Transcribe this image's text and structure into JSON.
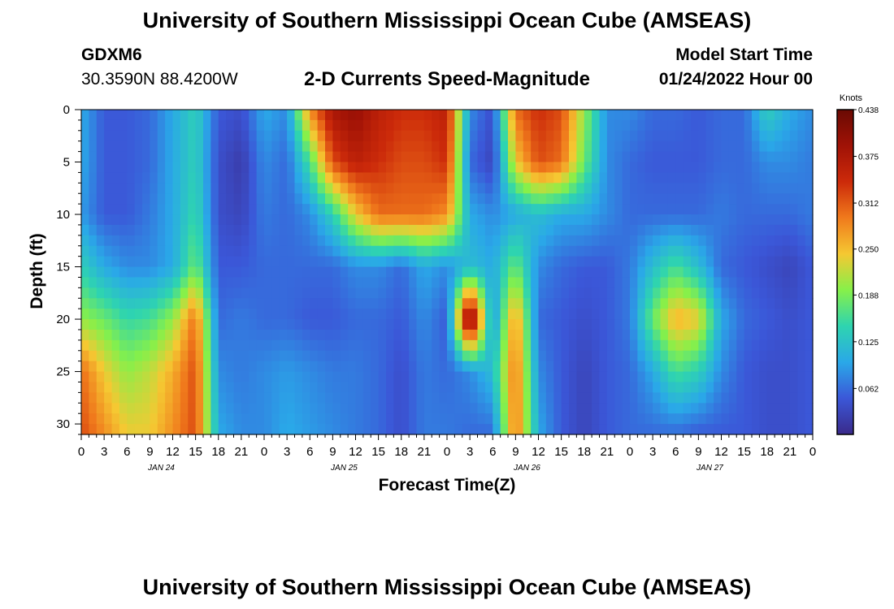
{
  "title": "University of Southern Mississippi Ocean Cube (AMSEAS)",
  "footer_title": "University of Southern Mississippi Ocean Cube (AMSEAS)",
  "station": "GDXM6",
  "coords": "30.3590N  88.4200W",
  "subtitle": "2-D Currents Speed-Magnitude",
  "model_start_label": "Model Start Time",
  "model_start_value": "01/24/2022 Hour 00",
  "chart_data": {
    "type": "heatmap",
    "title": "2-D Currents Speed-Magnitude",
    "xlabel": "Forecast Time(Z)",
    "ylabel": "Depth (ft)",
    "x_range_hours": [
      0,
      96
    ],
    "y_range_ft": [
      0,
      31
    ],
    "x_ticks": [
      "0",
      "3",
      "6",
      "9",
      "12",
      "15",
      "18",
      "21",
      "0",
      "3",
      "6",
      "9",
      "12",
      "15",
      "18",
      "21",
      "0",
      "3",
      "6",
      "9",
      "12",
      "15",
      "18",
      "21",
      "0",
      "3",
      "6",
      "9",
      "12",
      "15",
      "18",
      "21",
      "0"
    ],
    "y_ticks": [
      "0",
      "5",
      "10",
      "15",
      "20",
      "25",
      "30"
    ],
    "date_labels": [
      {
        "label": "JAN 24",
        "hour": 10.5
      },
      {
        "label": "JAN 25",
        "hour": 34.5
      },
      {
        "label": "JAN 26",
        "hour": 58.5
      },
      {
        "label": "JAN 27",
        "hour": 82.5
      }
    ],
    "colorbar": {
      "unit": "Knots",
      "min": 0,
      "max": 0.438,
      "ticks": [
        "0.438",
        "0.375",
        "0.312",
        "0.250",
        "0.188",
        "0.125",
        "0.062"
      ],
      "colors": [
        "#3a2a8a",
        "#3b57d8",
        "#2aa8e8",
        "#2ed4b0",
        "#86f04a",
        "#f5c832",
        "#f07a1c",
        "#cc2a0a",
        "#a01206",
        "#6a0a03"
      ]
    },
    "approx_speed_knots": {
      "depth_ft": [
        0,
        5,
        10,
        15,
        20,
        25,
        31
      ],
      "hours": [
        0,
        3,
        6,
        9,
        12,
        15,
        18,
        21,
        24,
        27,
        30,
        33,
        36,
        39,
        42,
        45,
        48,
        51,
        54,
        57,
        60,
        63,
        66,
        69,
        72,
        75,
        78,
        81,
        84,
        87,
        90,
        93,
        96
      ],
      "values": [
        [
          0.1,
          0.05,
          0.05,
          0.06,
          0.1,
          0.14,
          0.05,
          0.04,
          0.1,
          0.08,
          0.28,
          0.38,
          0.4,
          0.36,
          0.34,
          0.34,
          0.36,
          0.08,
          0.04,
          0.3,
          0.34,
          0.32,
          0.2,
          0.08,
          0.08,
          0.06,
          0.06,
          0.05,
          0.06,
          0.06,
          0.14,
          0.1,
          0.08
        ],
        [
          0.1,
          0.05,
          0.05,
          0.06,
          0.1,
          0.14,
          0.04,
          0.02,
          0.08,
          0.06,
          0.16,
          0.32,
          0.36,
          0.34,
          0.32,
          0.32,
          0.34,
          0.06,
          0.03,
          0.24,
          0.32,
          0.3,
          0.18,
          0.08,
          0.06,
          0.05,
          0.05,
          0.05,
          0.06,
          0.06,
          0.08,
          0.08,
          0.07
        ],
        [
          0.09,
          0.05,
          0.05,
          0.07,
          0.1,
          0.15,
          0.04,
          0.03,
          0.07,
          0.06,
          0.08,
          0.14,
          0.24,
          0.3,
          0.3,
          0.3,
          0.28,
          0.1,
          0.08,
          0.1,
          0.12,
          0.1,
          0.1,
          0.08,
          0.06,
          0.06,
          0.06,
          0.06,
          0.07,
          0.06,
          0.06,
          0.06,
          0.07
        ],
        [
          0.14,
          0.1,
          0.08,
          0.08,
          0.1,
          0.18,
          0.05,
          0.05,
          0.06,
          0.06,
          0.06,
          0.06,
          0.08,
          0.08,
          0.06,
          0.1,
          0.08,
          0.12,
          0.1,
          0.18,
          0.08,
          0.06,
          0.05,
          0.05,
          0.07,
          0.12,
          0.16,
          0.12,
          0.06,
          0.05,
          0.04,
          0.03,
          0.05
        ],
        [
          0.2,
          0.18,
          0.15,
          0.16,
          0.2,
          0.3,
          0.06,
          0.07,
          0.06,
          0.06,
          0.05,
          0.05,
          0.06,
          0.06,
          0.05,
          0.08,
          0.05,
          0.44,
          0.08,
          0.28,
          0.06,
          0.05,
          0.04,
          0.05,
          0.07,
          0.18,
          0.26,
          0.24,
          0.1,
          0.06,
          0.05,
          0.04,
          0.05
        ],
        [
          0.3,
          0.24,
          0.2,
          0.22,
          0.26,
          0.32,
          0.08,
          0.07,
          0.08,
          0.09,
          0.08,
          0.07,
          0.07,
          0.06,
          0.04,
          0.07,
          0.06,
          0.08,
          0.12,
          0.3,
          0.08,
          0.05,
          0.03,
          0.05,
          0.06,
          0.1,
          0.16,
          0.14,
          0.08,
          0.05,
          0.04,
          0.04,
          0.05
        ],
        [
          0.32,
          0.28,
          0.24,
          0.24,
          0.28,
          0.32,
          0.1,
          0.08,
          0.08,
          0.1,
          0.09,
          0.08,
          0.07,
          0.06,
          0.04,
          0.07,
          0.07,
          0.06,
          0.06,
          0.3,
          0.1,
          0.05,
          0.03,
          0.05,
          0.06,
          0.06,
          0.06,
          0.05,
          0.05,
          0.05,
          0.04,
          0.04,
          0.05
        ]
      ]
    }
  }
}
